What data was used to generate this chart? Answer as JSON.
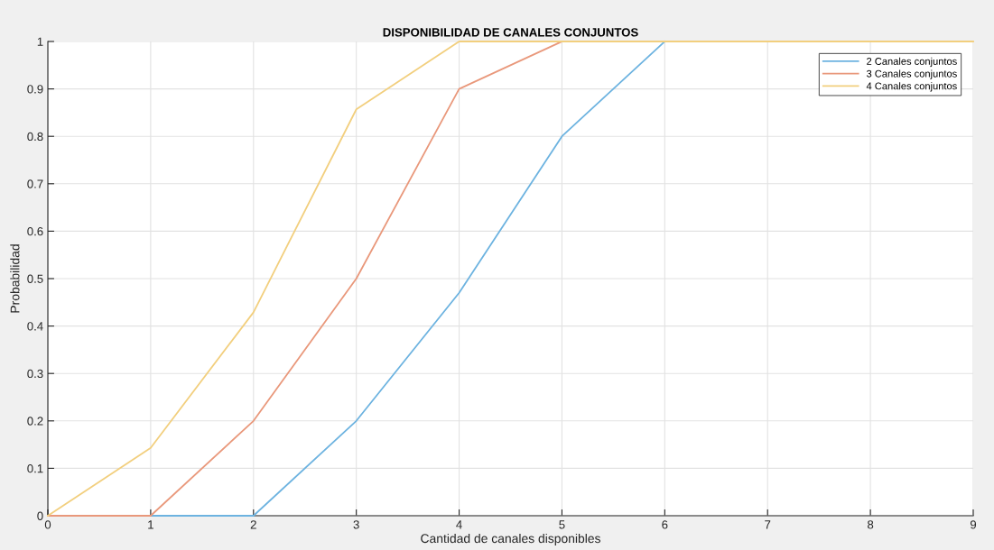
{
  "chart_data": {
    "type": "line",
    "title": "DISPONIBILIDAD DE CANALES CONJUNTOS",
    "xlabel": "Cantidad de canales disponibles",
    "ylabel": "Probabilidad",
    "x": [
      0,
      1,
      2,
      3,
      4,
      5,
      6,
      7,
      8,
      9
    ],
    "series": [
      {
        "name": "2 Canales conjuntos",
        "color": "#6db3e0",
        "values": [
          0,
          0,
          0,
          0.2,
          0.47,
          0.8,
          1,
          null,
          null,
          null
        ]
      },
      {
        "name": "3 Canales conjuntos",
        "color": "#e9987b",
        "values": [
          0,
          0,
          0.2,
          0.5,
          0.9,
          1,
          null,
          null,
          null,
          null
        ]
      },
      {
        "name": "4 Canales conjuntos",
        "color": "#f2cf7e",
        "values": [
          0,
          0.143,
          0.429,
          0.857,
          1,
          1,
          1,
          1,
          1,
          1
        ]
      }
    ],
    "xlim": [
      0,
      9
    ],
    "xticks": [
      0,
      1,
      2,
      3,
      4,
      5,
      6,
      7,
      8,
      9
    ],
    "ylim": [
      0,
      1
    ],
    "yticks": [
      0,
      0.1,
      0.2,
      0.3,
      0.4,
      0.5,
      0.6,
      0.7,
      0.8,
      0.9,
      1
    ],
    "grid": true,
    "legend": "top right",
    "marker": "none",
    "line_style": "solid"
  }
}
